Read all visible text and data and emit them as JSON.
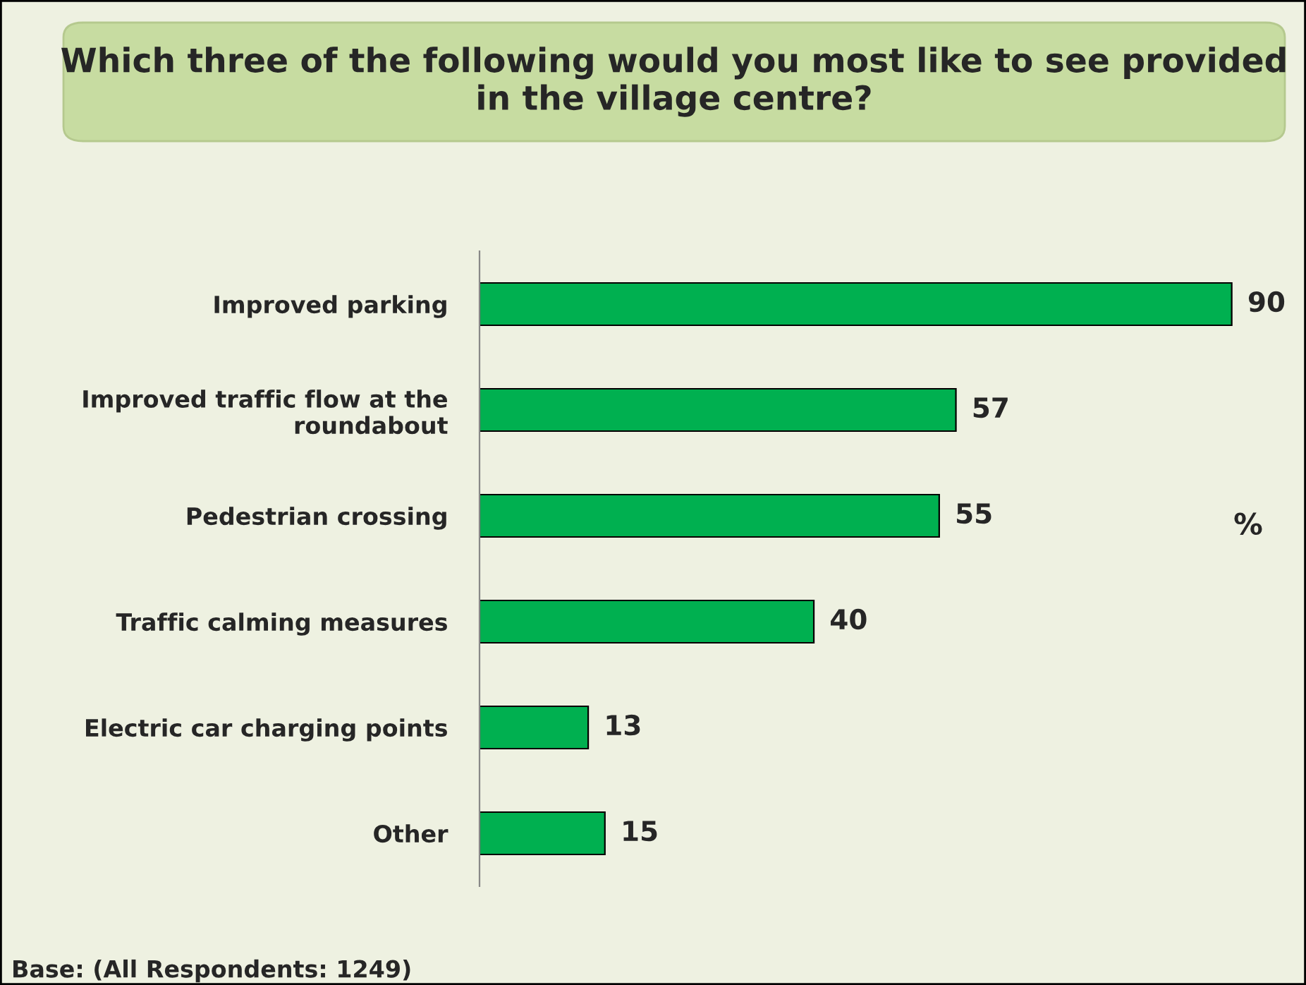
{
  "chart_data": {
    "type": "bar",
    "orientation": "horizontal",
    "title": "Which three of the following would you most like to see provided in the village centre?",
    "categories": [
      "Improved parking",
      "Improved traffic flow at the\nroundabout",
      "Pedestrian crossing",
      "Traffic calming measures",
      "Electric car charging points",
      "Other"
    ],
    "values": [
      90,
      57,
      55,
      40,
      13,
      15
    ],
    "color": "#00b050",
    "data_labels": true,
    "grid": false,
    "legend": false,
    "annotations": [
      "%",
      "Base: (All Respondents: 1249)"
    ]
  }
}
